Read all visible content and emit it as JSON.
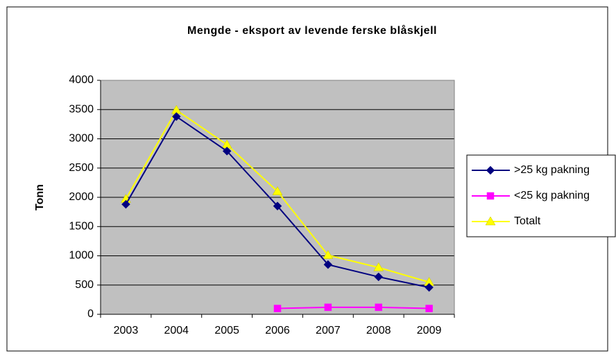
{
  "chart_data": {
    "type": "line",
    "title": "Mengde - eksport av levende ferske blåskjell",
    "ylabel": "Tonn",
    "categories": [
      "2003",
      "2004",
      "2005",
      "2006",
      "2007",
      "2008",
      "2009"
    ],
    "series": [
      {
        "name": ">25 kg pakning",
        "color": "#000080",
        "marker": "diamond",
        "values": [
          1880,
          3380,
          2790,
          1850,
          850,
          640,
          460
        ]
      },
      {
        "name": "<25 kg pakning",
        "color": "#ff00ff",
        "marker": "square",
        "values": [
          null,
          null,
          null,
          100,
          120,
          120,
          100
        ]
      },
      {
        "name": "Totalt",
        "color": "#ffff00",
        "marker": "triangle",
        "values": [
          1970,
          3490,
          2900,
          2100,
          1010,
          800,
          550
        ]
      }
    ],
    "ylim": [
      0,
      4000
    ],
    "yticks": [
      0,
      500,
      1000,
      1500,
      2000,
      2500,
      3000,
      3500,
      4000
    ],
    "grid": true,
    "legend": "right"
  }
}
